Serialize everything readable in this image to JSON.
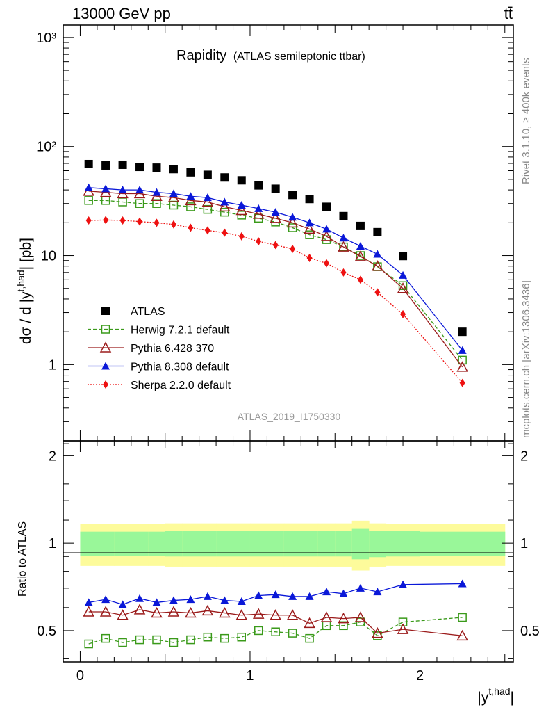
{
  "header": {
    "energy": "13000 GeV pp",
    "process": "tt̄"
  },
  "side_labels": {
    "rivet": "Rivet 3.1.10, ≥ 400k events",
    "source": "mcplots.cern.ch [arXiv:1306.3436]"
  },
  "top_panel": {
    "title_main": "Rapidity",
    "title_sub": "(ATLAS semileptonic ttbar)",
    "ylabel": "dσ / d |y",
    "ylabel_sup": "t,had",
    "ylabel_tail": "| [pb]",
    "analysis_tag": "ATLAS_2019_I1750330",
    "ytick_labels": [
      "1",
      "10",
      "10²",
      "10³"
    ]
  },
  "ratio_panel": {
    "ylabel": "Ratio to ATLAS",
    "ytick_labels": [
      "0.5",
      "1",
      "2"
    ]
  },
  "xaxis": {
    "label": "|y",
    "label_sup": "t,had",
    "label_tail": "|",
    "tick_labels": [
      "0",
      "1",
      "2"
    ]
  },
  "legend": [
    {
      "label": "ATLAS"
    },
    {
      "label": "Herwig 7.2.1 default"
    },
    {
      "label": "Pythia 6.428 370"
    },
    {
      "label": "Pythia 8.308 default"
    },
    {
      "label": "Sherpa 2.2.0 default"
    }
  ],
  "colors": {
    "data": "#000000",
    "herwig": "#3a9a1a",
    "pythia6": "#9b1b1b",
    "pythia8": "#0a18d8",
    "sherpa": "#ee1111",
    "band_inner": "#99f799",
    "band_outer": "#fdfb9b"
  },
  "chart_data": {
    "type": "scatter",
    "x_range": [
      -0.1,
      2.55
    ],
    "y_range_top": [
      0.2,
      1300
    ],
    "y_log_top": true,
    "y_range_ratio": [
      0.39,
      2.25
    ],
    "y_log_ratio": true,
    "bin_edges": [
      0.0,
      0.1,
      0.2,
      0.3,
      0.4,
      0.5,
      0.6,
      0.7,
      0.8,
      0.9,
      1.0,
      1.1,
      1.2,
      1.3,
      1.4,
      1.5,
      1.6,
      1.7,
      1.8,
      2.0,
      2.5
    ],
    "x": [
      0.05,
      0.15,
      0.25,
      0.35,
      0.45,
      0.55,
      0.65,
      0.75,
      0.85,
      0.95,
      1.05,
      1.15,
      1.25,
      1.35,
      1.45,
      1.55,
      1.65,
      1.75,
      1.9,
      2.25
    ],
    "data_values": [
      69,
      67,
      68,
      65,
      64,
      62,
      58,
      55,
      52,
      49,
      44,
      41,
      36,
      33,
      28,
      23,
      18.7,
      16.4,
      9.9,
      2.0
    ],
    "series": [
      {
        "name": "Herwig 7.2.1 default",
        "values": [
          32,
          32,
          31,
          30,
          30,
          29,
          28,
          26.5,
          25,
          23.5,
          22,
          20.3,
          18,
          15.5,
          14,
          12,
          10,
          7.9,
          5.3,
          1.1
        ],
        "ratio": [
          0.45,
          0.47,
          0.455,
          0.465,
          0.465,
          0.455,
          0.465,
          0.475,
          0.47,
          0.475,
          0.5,
          0.495,
          0.49,
          0.47,
          0.52,
          0.52,
          0.535,
          0.48,
          0.535,
          0.555
        ]
      },
      {
        "name": "Pythia 6.428 370",
        "values": [
          39,
          38,
          37,
          37,
          35,
          34,
          32,
          31,
          28,
          26,
          24,
          22,
          20,
          17.5,
          15,
          12,
          9.8,
          8.0,
          5.0,
          0.95
        ],
        "ratio": [
          0.58,
          0.58,
          0.565,
          0.59,
          0.575,
          0.58,
          0.575,
          0.585,
          0.575,
          0.565,
          0.57,
          0.565,
          0.565,
          0.53,
          0.555,
          0.55,
          0.555,
          0.49,
          0.505,
          0.48
        ]
      },
      {
        "name": "Pythia 8.308 default",
        "values": [
          42,
          41,
          40,
          40,
          38,
          37,
          35,
          34,
          31,
          29,
          27,
          25,
          22.5,
          20,
          17.5,
          14.5,
          12.2,
          10.3,
          6.6,
          1.35
        ],
        "ratio": [
          0.625,
          0.64,
          0.615,
          0.645,
          0.625,
          0.635,
          0.64,
          0.655,
          0.635,
          0.63,
          0.66,
          0.665,
          0.655,
          0.655,
          0.68,
          0.67,
          0.7,
          0.68,
          0.72,
          0.725
        ]
      },
      {
        "name": "Sherpa 2.2.0 default",
        "values": [
          21,
          21.2,
          21,
          20.5,
          20,
          19.3,
          18,
          17,
          16.2,
          15,
          13.5,
          12.5,
          11.5,
          9.5,
          8.5,
          7.0,
          6.0,
          4.6,
          2.9,
          0.68
        ]
      }
    ],
    "band_inner_halfwidth": [
      0.095,
      0.095,
      0.095,
      0.095,
      0.095,
      0.1,
      0.1,
      0.1,
      0.1,
      0.1,
      0.1,
      0.1,
      0.1,
      0.1,
      0.1,
      0.1,
      0.12,
      0.105,
      0.1,
      0.095
    ],
    "band_outer_halfwidth": [
      0.165,
      0.165,
      0.165,
      0.165,
      0.165,
      0.17,
      0.17,
      0.17,
      0.17,
      0.17,
      0.17,
      0.17,
      0.17,
      0.17,
      0.17,
      0.17,
      0.195,
      0.17,
      0.165,
      0.165
    ]
  }
}
